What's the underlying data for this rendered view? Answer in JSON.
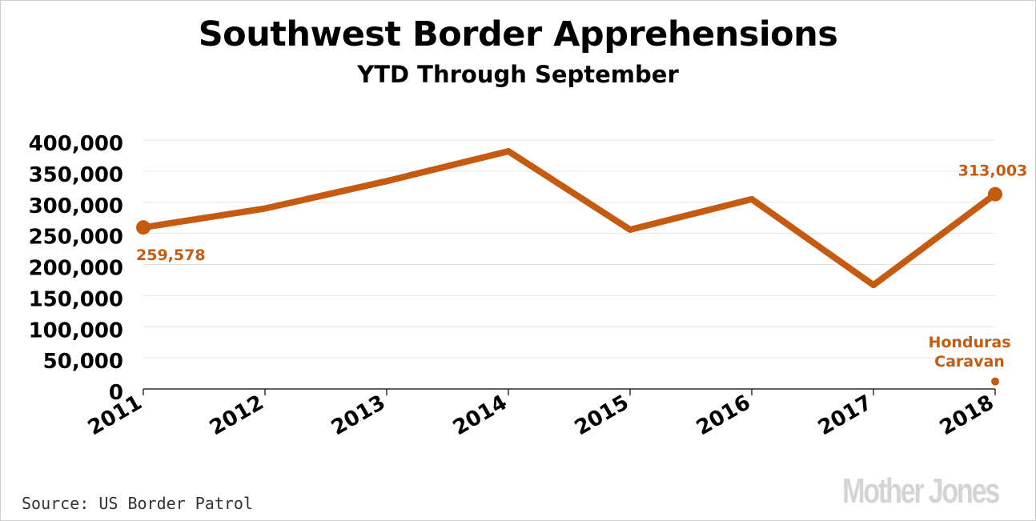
{
  "title": "Southwest Border Apprehensions",
  "subtitle": "YTD Through September",
  "source": "Source: US Border Patrol",
  "logo": "Mother Jones",
  "colors": {
    "line": "#c55a11",
    "text": "#000000",
    "grid": "#e3e3e3",
    "annotation": "#c55a11",
    "logo": "#d4d4d4"
  },
  "chart_data": {
    "type": "line",
    "title": "Southwest Border Apprehensions",
    "subtitle": "YTD Through September",
    "x": [
      "2011",
      "2012",
      "2013",
      "2014",
      "2015",
      "2016",
      "2017",
      "2018"
    ],
    "series": [
      {
        "values": [
          259578,
          290000,
          334000,
          382000,
          256000,
          305000,
          167000,
          313003
        ]
      }
    ],
    "ylim": [
      0,
      400000
    ],
    "yticks": [
      0,
      50000,
      100000,
      150000,
      200000,
      250000,
      300000,
      350000,
      400000
    ],
    "ytick_labels": [
      "0",
      "50,000",
      "100,000",
      "150,000",
      "200,000",
      "250,000",
      "300,000",
      "350,000",
      "400,000"
    ],
    "grid": true,
    "data_labels": {
      "first": "259,578",
      "last": "313,003"
    },
    "annotations": [
      {
        "x": "2018",
        "y": 12000,
        "lines": [
          "Honduras",
          "Caravan"
        ]
      }
    ]
  }
}
